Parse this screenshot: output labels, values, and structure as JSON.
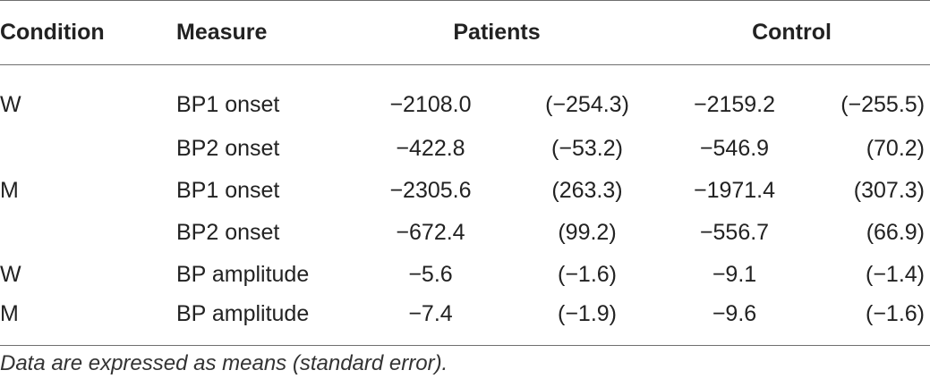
{
  "table": {
    "headers": {
      "condition": "Condition",
      "measure": "Measure",
      "patients": "Patients",
      "control": "Control"
    },
    "rows": [
      {
        "condition": "W",
        "measure": "BP1 onset",
        "patients_mean": "−2108.0",
        "patients_se": "(−254.3)",
        "control_mean": "−2159.2",
        "control_se": "(−255.5)"
      },
      {
        "condition": "",
        "measure": "BP2 onset",
        "patients_mean": "−422.8",
        "patients_se": "(−53.2)",
        "control_mean": "−546.9",
        "control_se": "(70.2)"
      },
      {
        "condition": "M",
        "measure": "BP1 onset",
        "patients_mean": "−2305.6",
        "patients_se": "(263.3)",
        "control_mean": "−1971.4",
        "control_se": "(307.3)"
      },
      {
        "condition": "",
        "measure": "BP2 onset",
        "patients_mean": "−672.4",
        "patients_se": "(99.2)",
        "control_mean": "−556.7",
        "control_se": "(66.9)"
      },
      {
        "condition": "W",
        "measure": "BP amplitude",
        "patients_mean": "−5.6",
        "patients_se": "(−1.6)",
        "control_mean": "−9.1",
        "control_se": "(−1.4)"
      },
      {
        "condition": "M",
        "measure": "BP amplitude",
        "patients_mean": "−7.4",
        "patients_se": "(−1.9)",
        "control_mean": "−9.6",
        "control_se": "(−1.6)"
      }
    ],
    "footnote": "Data are expressed as means (standard error)."
  }
}
